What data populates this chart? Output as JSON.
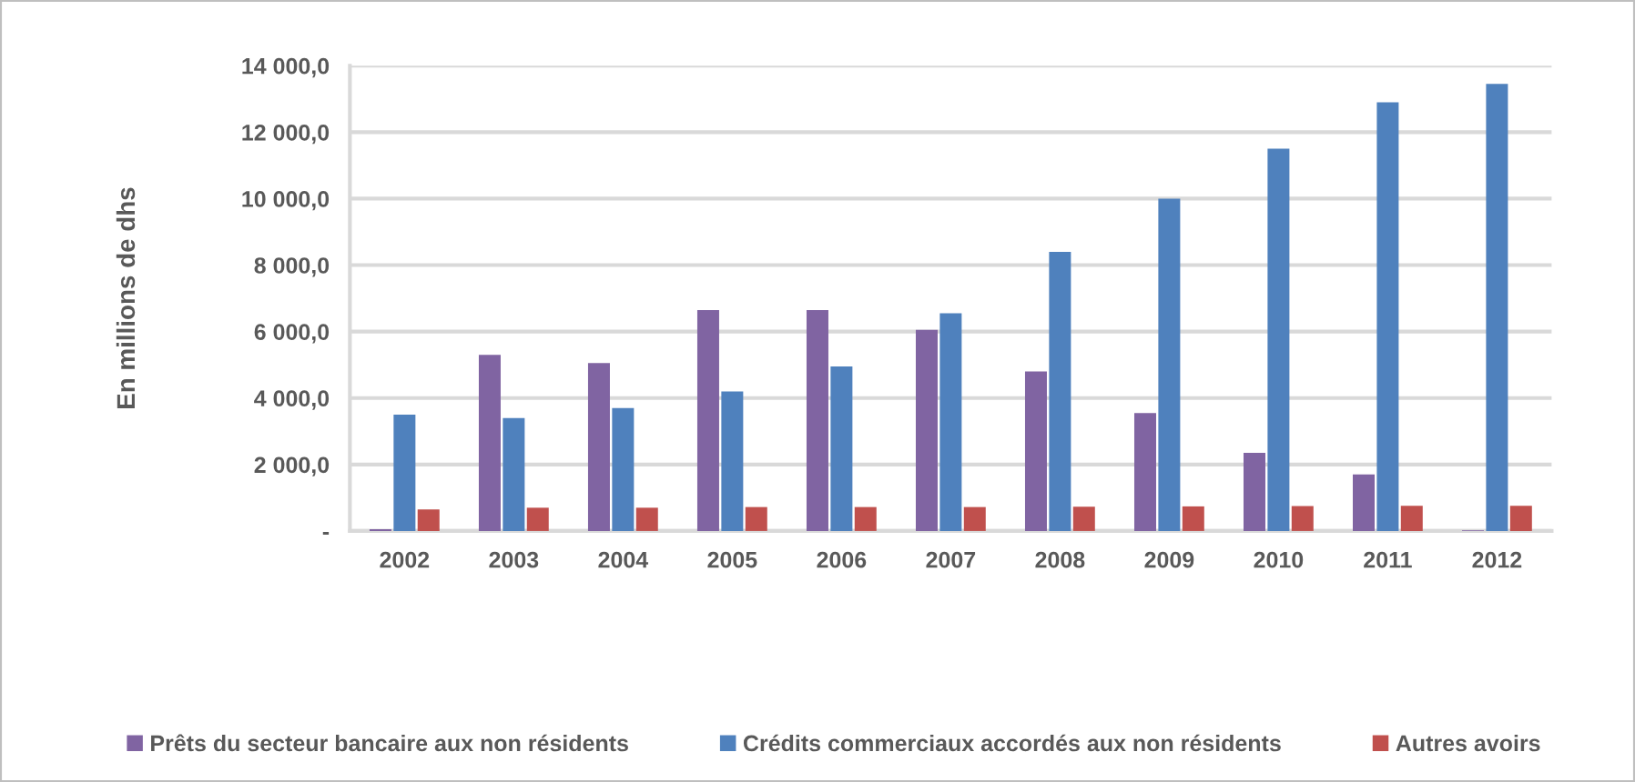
{
  "chart_data": {
    "type": "bar",
    "ylabel": "En millions de dhs",
    "categories": [
      "2002",
      "2003",
      "2004",
      "2005",
      "2006",
      "2007",
      "2008",
      "2009",
      "2010",
      "2011",
      "2012"
    ],
    "series": [
      {
        "name": "Prêts du secteur bancaire aux non résidents",
        "color": "#8064a2",
        "values": [
          50,
          5300,
          5050,
          6650,
          6650,
          6050,
          4800,
          3550,
          2350,
          1700,
          20
        ]
      },
      {
        "name": "Crédits commerciaux accordés aux non résidents",
        "color": "#4f81bd",
        "values": [
          3500,
          3400,
          3700,
          4200,
          4950,
          6550,
          8400,
          10000,
          11500,
          12900,
          13450
        ]
      },
      {
        "name": "Autres avoirs",
        "color": "#c0504d",
        "values": [
          650,
          700,
          700,
          720,
          720,
          720,
          730,
          740,
          750,
          760,
          760
        ]
      }
    ],
    "ylim": [
      0,
      14000
    ],
    "yticks": [
      {
        "value": 0,
        "label": "-"
      },
      {
        "value": 2000,
        "label": "2 000,0"
      },
      {
        "value": 4000,
        "label": "4 000,0"
      },
      {
        "value": 6000,
        "label": "6 000,0"
      },
      {
        "value": 8000,
        "label": "8 000,0"
      },
      {
        "value": 10000,
        "label": "10 000,0"
      },
      {
        "value": 12000,
        "label": "12 000,0"
      },
      {
        "value": 14000,
        "label": "14 000,0"
      }
    ],
    "grid": "y",
    "legend": "bottom"
  }
}
